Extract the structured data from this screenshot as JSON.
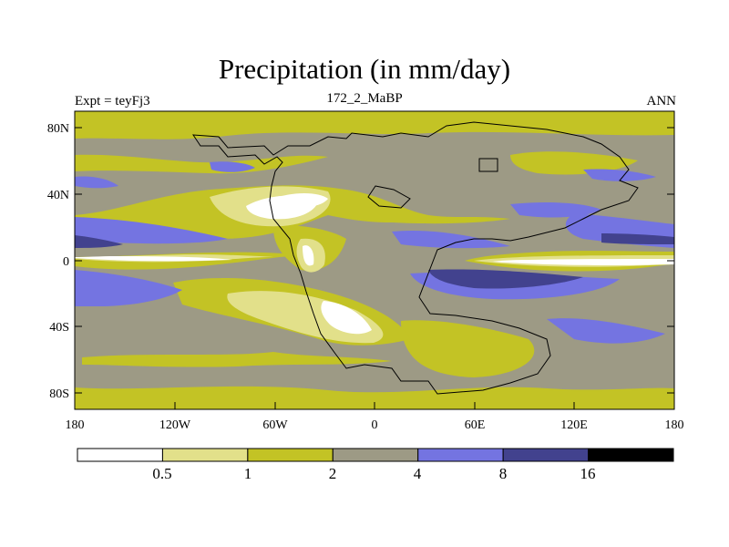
{
  "title": "Precipitation (in mm/day)",
  "experiment": "Expt = teyFj3",
  "period": "172_2_MaBP",
  "season": "ANN",
  "lat_ticks": [
    "80N",
    "40N",
    "0",
    "40S",
    "80S"
  ],
  "lon_ticks": [
    "180",
    "120W",
    "60W",
    "0",
    "60E",
    "120E",
    "180"
  ],
  "colorbar": {
    "colors": [
      "#ffffff",
      "#e2e08a",
      "#c3c325",
      "#9d9a85",
      "#7474e1",
      "#42428e",
      "#000000"
    ],
    "labels": [
      "0.5",
      "1",
      "2",
      "4",
      "8",
      "16"
    ]
  },
  "palette": {
    "lt1": "#ffffff",
    "c1": "#e2e08a",
    "c2": "#c3c325",
    "c3": "#9d9a85",
    "c4": "#7474e1",
    "c5": "#42428e",
    "c6": "#000000"
  }
}
